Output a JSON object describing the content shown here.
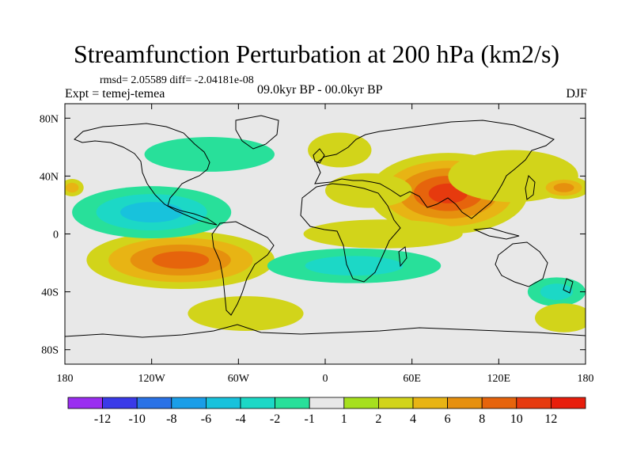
{
  "chart_data": {
    "type": "contour_map",
    "title": "Streamfunction Perturbation at 200 hPa (km2/s)",
    "stats": "rmsd= 2.05589 diff= -2.04181e-08",
    "experiment": "Expt = temej-temea",
    "period": "09.0kyr BP - 00.0kyr BP",
    "season": "DJF",
    "x_axis": {
      "range": [
        -180,
        180
      ],
      "ticks": [
        {
          "value": -180,
          "label": "180"
        },
        {
          "value": -120,
          "label": "120W"
        },
        {
          "value": -60,
          "label": "60W"
        },
        {
          "value": 0,
          "label": "0"
        },
        {
          "value": 60,
          "label": "60E"
        },
        {
          "value": 120,
          "label": "120E"
        },
        {
          "value": 180,
          "label": "180"
        }
      ]
    },
    "y_axis": {
      "range": [
        -90,
        90
      ],
      "ticks": [
        {
          "value": 80,
          "label": "80N"
        },
        {
          "value": 40,
          "label": "40N"
        },
        {
          "value": 0,
          "label": "0"
        },
        {
          "value": -40,
          "label": "40S"
        },
        {
          "value": -80,
          "label": "80S"
        }
      ]
    },
    "levels": [
      {
        "label": "-12",
        "color": "#9a2df0"
      },
      {
        "label": "-10",
        "color": "#3a3ae8"
      },
      {
        "label": "-8",
        "color": "#2a72e6"
      },
      {
        "label": "-6",
        "color": "#1a9ee8"
      },
      {
        "label": "-4",
        "color": "#18c2dc"
      },
      {
        "label": "-2",
        "color": "#1cd8c6"
      },
      {
        "label": "-1",
        "color": "#28e09a"
      },
      {
        "label": "1",
        "color": "#e8e8e8"
      },
      {
        "label": "2",
        "color": "#a6e01e"
      },
      {
        "label": "4",
        "color": "#d2d41a"
      },
      {
        "label": "6",
        "color": "#e8b414"
      },
      {
        "label": "8",
        "color": "#e6900e"
      },
      {
        "label": "10",
        "color": "#e6640c"
      },
      {
        "label": "12",
        "color": "#e63a0e"
      },
      {
        "label": "",
        "color": "#e81e0c"
      }
    ],
    "field_features": [
      {
        "lon": 85,
        "lat": 28,
        "value": 10,
        "extent_lon": 55,
        "extent_lat": 28
      },
      {
        "lon": 130,
        "lat": 40,
        "value": 3,
        "extent_lon": 45,
        "extent_lat": 18
      },
      {
        "lon": 30,
        "lat": 30,
        "value": 3,
        "extent_lon": 30,
        "extent_lat": 12
      },
      {
        "lon": 40,
        "lat": 0,
        "value": 2,
        "extent_lon": 55,
        "extent_lat": 10
      },
      {
        "lon": 10,
        "lat": 58,
        "value": 2,
        "extent_lon": 22,
        "extent_lat": 12
      },
      {
        "lon": 165,
        "lat": 32,
        "value": 6,
        "extent_lon": 18,
        "extent_lat": 8
      },
      {
        "lon": -175,
        "lat": 32,
        "value": 4,
        "extent_lon": 8,
        "extent_lat": 6
      },
      {
        "lon": -100,
        "lat": -18,
        "value": 8,
        "extent_lon": 65,
        "extent_lat": 20
      },
      {
        "lon": -120,
        "lat": 15,
        "value": -5,
        "extent_lon": 55,
        "extent_lat": 18
      },
      {
        "lon": -80,
        "lat": 55,
        "value": -2,
        "extent_lon": 45,
        "extent_lat": 12
      },
      {
        "lon": 20,
        "lat": -22,
        "value": -3,
        "extent_lon": 60,
        "extent_lat": 12
      },
      {
        "lon": 160,
        "lat": -40,
        "value": -3,
        "extent_lon": 20,
        "extent_lat": 10
      },
      {
        "lon": -55,
        "lat": -55,
        "value": 2,
        "extent_lon": 40,
        "extent_lat": 12
      },
      {
        "lon": 165,
        "lat": -58,
        "value": 2,
        "extent_lon": 20,
        "extent_lat": 10
      }
    ]
  }
}
